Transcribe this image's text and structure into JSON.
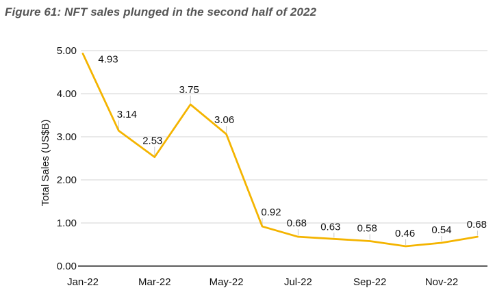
{
  "figure": {
    "title": "Figure 61: NFT sales plunged in the second half of 2022"
  },
  "chart_data": {
    "type": "line",
    "x": [
      "Jan-22",
      "Feb-22",
      "Mar-22",
      "Apr-22",
      "May-22",
      "Jun-22",
      "Jul-22",
      "Aug-22",
      "Sep-22",
      "Oct-22",
      "Nov-22",
      "Dec-22"
    ],
    "values": [
      4.93,
      3.14,
      2.53,
      3.75,
      3.06,
      0.92,
      0.68,
      0.63,
      0.58,
      0.46,
      0.54,
      0.68
    ],
    "data_labels": [
      "4.93",
      "3.14",
      "2.53",
      "3.75",
      "3.06",
      "0.92",
      "0.68",
      "0.63",
      "0.58",
      "0.46",
      "0.54",
      "0.68"
    ],
    "ylabel": "Total Sales (US$B)",
    "xlabel": "",
    "ylim": [
      0,
      5
    ],
    "y_ticks": [
      "0.00",
      "1.00",
      "2.00",
      "3.00",
      "4.00",
      "5.00"
    ],
    "x_tick_labels": [
      "Jan-22",
      "Mar-22",
      "May-22",
      "Jul-22",
      "Sep-22",
      "Nov-22"
    ],
    "grid": "horizontal",
    "legend": "none",
    "colors": {
      "line": "#F4B400",
      "gridline": "#D3D3D3",
      "axis": "#262626",
      "leader": "#C8C8C8",
      "text": "#111111",
      "title_text": "#555555"
    }
  }
}
